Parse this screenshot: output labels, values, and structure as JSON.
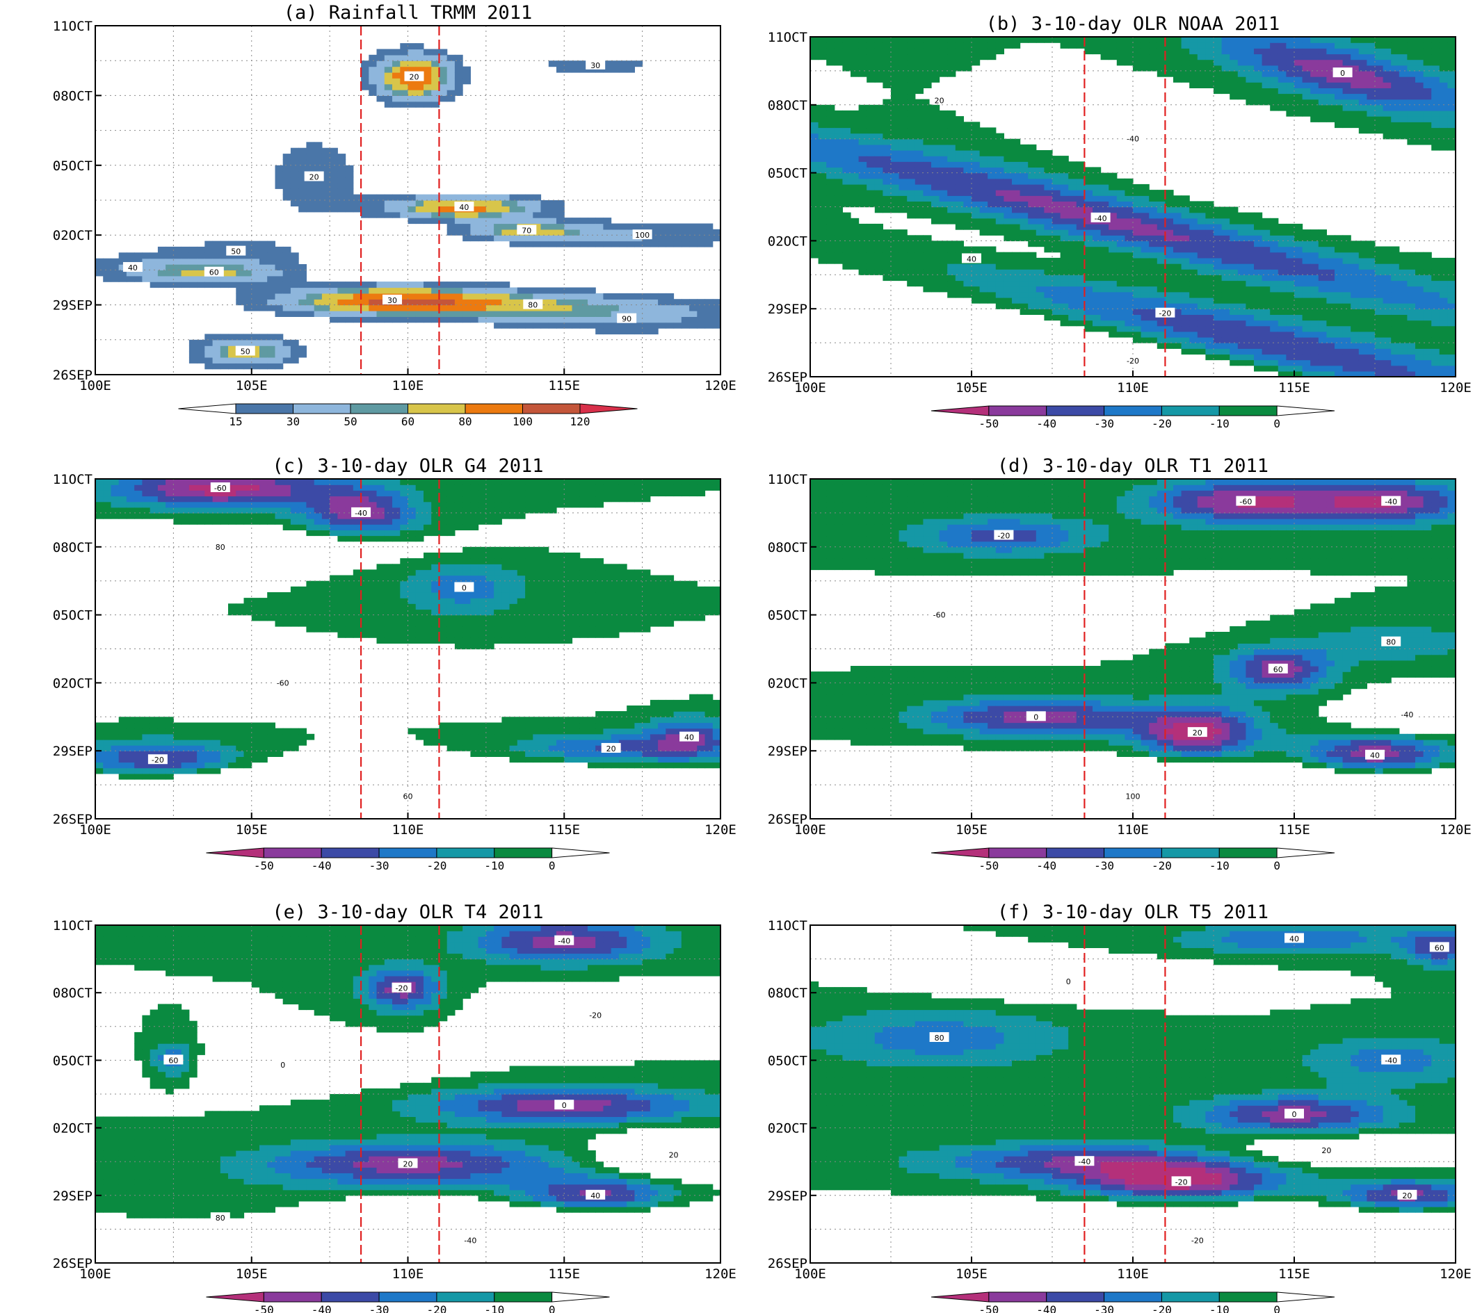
{
  "figure": {
    "x_ticks": [
      "100E",
      "105E",
      "110E",
      "115E",
      "120E"
    ],
    "x_tick_values": [
      100,
      105,
      110,
      115,
      120
    ],
    "y_ticks": [
      "26SEP",
      "29SEP",
      "02OCT",
      "05OCT",
      "08OCT",
      "11OCT"
    ],
    "y_tick_days": [
      0,
      3,
      6,
      9,
      12,
      15
    ],
    "reference_lines_lon": [
      108.5,
      111.0
    ],
    "reference_line_color": "#e02020",
    "rain_colorbar": {
      "levels": [
        "15",
        "30",
        "50",
        "60",
        "80",
        "100",
        "120"
      ],
      "colors": [
        "#ffffff",
        "#4a76a8",
        "#8eb6dc",
        "#5f9aa2",
        "#d8c54a",
        "#ec7a10",
        "#c4563a",
        "#d8304a"
      ]
    },
    "olr_colorbar": {
      "levels": [
        "-50",
        "-40",
        "-30",
        "-20",
        "-10",
        "0"
      ],
      "colors": [
        "#b4307a",
        "#8a3a9c",
        "#3c4aa6",
        "#1e78c8",
        "#1598a6",
        "#0a8a40",
        "#ffffff"
      ]
    }
  },
  "chart_data": [
    {
      "panel": "a",
      "type": "heatmap",
      "title": "(a) Rainfall  TRMM 2011",
      "colorbar": "rain",
      "features": [
        {
          "lon": 110.2,
          "day": 12.8,
          "peak": 100,
          "sx": 0.9,
          "sy": 0.7
        },
        {
          "lon": 109.5,
          "day": 3.2,
          "peak": 90,
          "sx": 2.6,
          "sy": 0.45
        },
        {
          "lon": 111.8,
          "day": 7.2,
          "peak": 90,
          "sx": 1.7,
          "sy": 0.35
        },
        {
          "lon": 104.8,
          "day": 1.0,
          "peak": 70,
          "sx": 1.1,
          "sy": 0.45
        },
        {
          "lon": 103.8,
          "day": 4.4,
          "peak": 60,
          "sx": 1.6,
          "sy": 0.35
        },
        {
          "lon": 113.8,
          "day": 6.2,
          "peak": 60,
          "sx": 1.4,
          "sy": 0.3
        },
        {
          "lon": 114.0,
          "day": 3.0,
          "peak": 45,
          "sx": 3.5,
          "sy": 0.4
        },
        {
          "lon": 117.0,
          "day": 2.4,
          "peak": 30,
          "sx": 3.0,
          "sy": 0.45
        },
        {
          "lon": 117.5,
          "day": 6.0,
          "peak": 30,
          "sx": 2.8,
          "sy": 0.45
        },
        {
          "lon": 107.0,
          "day": 8.5,
          "peak": 25,
          "sx": 1.2,
          "sy": 1.4
        },
        {
          "lon": 116.0,
          "day": 13.3,
          "peak": 20,
          "sx": 2.0,
          "sy": 0.35
        },
        {
          "lon": 101.2,
          "day": 4.6,
          "peak": 20,
          "sx": 1.3,
          "sy": 0.5
        },
        {
          "lon": 104.5,
          "day": 5.3,
          "peak": 20,
          "sx": 2.0,
          "sy": 0.5
        }
      ],
      "labels": [
        "20",
        "30",
        "40",
        "50",
        "60",
        "70",
        "80",
        "90",
        "100"
      ]
    },
    {
      "panel": "b",
      "type": "heatmap",
      "title": "(b) 3-10-day OLR  NOAA 2011",
      "colorbar": "olr",
      "features": [
        {
          "lon": 109.0,
          "day": 7.0,
          "peak": -42,
          "sx": 9.0,
          "sy": 0.8,
          "tilt": -0.35
        },
        {
          "lon": 111.0,
          "day": 2.8,
          "peak": -46,
          "sx": 9.0,
          "sy": 0.9,
          "tilt": -0.35
        },
        {
          "lon": 116.5,
          "day": 13.4,
          "peak": -45,
          "sx": 3.0,
          "sy": 0.9,
          "tilt": -0.35
        },
        {
          "lon": 104.0,
          "day": 12.2,
          "peak": -18,
          "sx": 3.5,
          "sy": 1.4,
          "tilt": -0.5
        },
        {
          "lon": 105.0,
          "day": 5.2,
          "peak": 28,
          "sx": 6.0,
          "sy": 0.9,
          "tilt": -0.3
        },
        {
          "lon": 110.0,
          "day": 10.5,
          "peak": 25,
          "sx": 8.0,
          "sy": 1.1,
          "tilt": -0.3
        },
        {
          "lon": 110.0,
          "day": 0.7,
          "peak": 25,
          "sx": 8.0,
          "sy": 0.7,
          "tilt": -0.3
        }
      ],
      "labels": [
        "-40",
        "-20",
        "0",
        "20",
        "40"
      ]
    },
    {
      "panel": "c",
      "type": "heatmap",
      "title": "(c) 3-10-day OLR  G4 2011",
      "colorbar": "olr",
      "features": [
        {
          "lon": 104.0,
          "day": 14.6,
          "peak": -55,
          "sx": 2.5,
          "sy": 0.6
        },
        {
          "lon": 108.5,
          "day": 13.5,
          "peak": -45,
          "sx": 1.3,
          "sy": 0.8
        },
        {
          "lon": 102.0,
          "day": 2.6,
          "peak": -45,
          "sx": 1.8,
          "sy": 0.6
        },
        {
          "lon": 111.8,
          "day": 10.2,
          "peak": -25,
          "sx": 1.5,
          "sy": 0.9
        },
        {
          "lon": 116.5,
          "day": 3.1,
          "peak": -32,
          "sx": 2.2,
          "sy": 0.5
        },
        {
          "lon": 119.0,
          "day": 3.6,
          "peak": -35,
          "sx": 1.0,
          "sy": 0.7
        },
        {
          "lon": 110.0,
          "day": 1.0,
          "peak": 60,
          "sx": 8.0,
          "sy": 0.8
        },
        {
          "lon": 104.0,
          "day": 12.0,
          "peak": 30,
          "sx": 4.0,
          "sy": 0.5
        },
        {
          "lon": 106.0,
          "day": 6.0,
          "peak": 25,
          "sx": 6.0,
          "sy": 0.6
        }
      ],
      "labels": [
        "-60",
        "-40",
        "-20",
        "0",
        "20",
        "40",
        "60",
        "80"
      ]
    },
    {
      "panel": "d",
      "type": "heatmap",
      "title": "(d) 3-10-day OLR  T1 2011",
      "colorbar": "olr",
      "features": [
        {
          "lon": 113.5,
          "day": 14.0,
          "peak": -50,
          "sx": 2.2,
          "sy": 0.7
        },
        {
          "lon": 118.0,
          "day": 14.0,
          "peak": -45,
          "sx": 1.8,
          "sy": 0.7
        },
        {
          "lon": 106.0,
          "day": 12.5,
          "peak": -35,
          "sx": 2.0,
          "sy": 0.6
        },
        {
          "lon": 107.0,
          "day": 4.5,
          "peak": -45,
          "sx": 2.5,
          "sy": 0.6
        },
        {
          "lon": 112.0,
          "day": 3.8,
          "peak": -55,
          "sx": 1.3,
          "sy": 0.8
        },
        {
          "lon": 117.5,
          "day": 2.8,
          "peak": -50,
          "sx": 1.6,
          "sy": 0.7
        },
        {
          "lon": 114.5,
          "day": 6.6,
          "peak": -45,
          "sx": 1.2,
          "sy": 0.7
        },
        {
          "lon": 118.0,
          "day": 7.8,
          "peak": -20,
          "sx": 1.8,
          "sy": 0.6
        },
        {
          "lon": 110.0,
          "day": 1.0,
          "peak": 90,
          "sx": 8.0,
          "sy": 0.8
        },
        {
          "lon": 104.0,
          "day": 9.0,
          "peak": 20,
          "sx": 4.0,
          "sy": 0.6
        },
        {
          "lon": 118.5,
          "day": 4.6,
          "peak": 30,
          "sx": 1.2,
          "sy": 0.6
        }
      ],
      "labels": [
        "-60",
        "-40",
        "-20",
        "0",
        "20",
        "40",
        "60",
        "80",
        "100"
      ]
    },
    {
      "panel": "e",
      "type": "heatmap",
      "title": "(e) 3-10-day OLR  T4 2011",
      "colorbar": "olr",
      "features": [
        {
          "lon": 115.0,
          "day": 14.3,
          "peak": -45,
          "sx": 2.2,
          "sy": 0.7
        },
        {
          "lon": 109.8,
          "day": 12.2,
          "peak": -45,
          "sx": 0.9,
          "sy": 0.7
        },
        {
          "lon": 115.0,
          "day": 7.0,
          "peak": -45,
          "sx": 3.2,
          "sy": 0.6
        },
        {
          "lon": 110.0,
          "day": 4.4,
          "peak": -45,
          "sx": 3.5,
          "sy": 0.7
        },
        {
          "lon": 116.0,
          "day": 3.0,
          "peak": -45,
          "sx": 1.8,
          "sy": 0.6
        },
        {
          "lon": 102.5,
          "day": 9.0,
          "peak": -35,
          "sx": 0.6,
          "sy": 0.6
        },
        {
          "lon": 104.0,
          "day": 2.0,
          "peak": -20,
          "sx": 2.5,
          "sy": 0.8
        },
        {
          "lon": 112.0,
          "day": 1.0,
          "peak": 70,
          "sx": 7.0,
          "sy": 0.9
        },
        {
          "lon": 116.0,
          "day": 11.0,
          "peak": 30,
          "sx": 2.0,
          "sy": 0.7
        },
        {
          "lon": 106.0,
          "day": 8.8,
          "peak": 20,
          "sx": 3.0,
          "sy": 0.7
        },
        {
          "lon": 118.5,
          "day": 4.8,
          "peak": 35,
          "sx": 1.6,
          "sy": 0.7
        }
      ],
      "labels": [
        "-40",
        "-20",
        "0",
        "20",
        "40",
        "60",
        "80"
      ]
    },
    {
      "panel": "f",
      "type": "heatmap",
      "title": "(f) 3-10-day OLR  T5 2011",
      "colorbar": "olr",
      "features": [
        {
          "lon": 108.5,
          "day": 4.5,
          "peak": -40,
          "sx": 3.5,
          "sy": 0.6
        },
        {
          "lon": 111.5,
          "day": 3.6,
          "peak": -50,
          "sx": 2.2,
          "sy": 0.6
        },
        {
          "lon": 115.0,
          "day": 6.6,
          "peak": -45,
          "sx": 2.2,
          "sy": 0.6
        },
        {
          "lon": 118.5,
          "day": 3.0,
          "peak": -45,
          "sx": 1.5,
          "sy": 0.5
        },
        {
          "lon": 115.0,
          "day": 14.4,
          "peak": -30,
          "sx": 2.5,
          "sy": 0.5
        },
        {
          "lon": 119.5,
          "day": 14.0,
          "peak": -35,
          "sx": 0.8,
          "sy": 0.6
        },
        {
          "lon": 104.0,
          "day": 10.0,
          "peak": -25,
          "sx": 3.0,
          "sy": 1.0
        },
        {
          "lon": 118.0,
          "day": 9.0,
          "peak": -25,
          "sx": 2.0,
          "sy": 0.8
        },
        {
          "lon": 112.0,
          "day": 1.0,
          "peak": 80,
          "sx": 6.0,
          "sy": 0.8
        },
        {
          "lon": 108.0,
          "day": 12.5,
          "peak": 20,
          "sx": 3.0,
          "sy": 0.6
        },
        {
          "lon": 116.0,
          "day": 5.0,
          "peak": 20,
          "sx": 2.5,
          "sy": 0.5
        }
      ],
      "labels": [
        "-40",
        "-20",
        "0",
        "20",
        "40",
        "60",
        "80"
      ]
    }
  ]
}
